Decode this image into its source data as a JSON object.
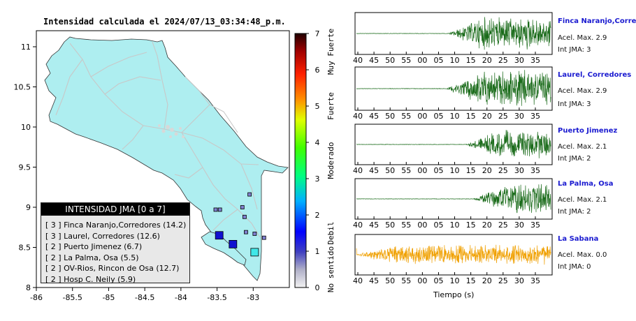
{
  "header": {
    "title": "Intensidad calculada el 2024/07/13_03:34:48_p.m."
  },
  "map": {
    "x_ticks": [
      "-86",
      "-85.5",
      "-85",
      "-84.5",
      "-84",
      "-83.5",
      "-83"
    ],
    "x_values": [
      -86,
      -85.5,
      -85,
      -84.5,
      -84,
      -83.5,
      -83
    ],
    "y_ticks": [
      "11",
      "10.5",
      "10",
      "9.5",
      "9",
      "8.5",
      "8"
    ],
    "y_values": [
      11,
      10.5,
      10,
      9.5,
      9,
      8.5,
      8
    ],
    "xlim": [
      -86,
      -82.5
    ],
    "ylim": [
      8,
      11.2
    ],
    "land_color": "#aeeef0",
    "road_color": "#c8c8c8"
  },
  "colorbar": {
    "ticks": [
      "0",
      "1",
      "2",
      "3",
      "4",
      "5",
      "6",
      "7"
    ],
    "categories": [
      "No sentido",
      "Debil",
      "Moderado",
      "Fuerte",
      "Muy Fuerte"
    ]
  },
  "legend": {
    "title": "INTENSIDAD JMA [0 a 7]",
    "items": [
      "[ 3 ]  Finca Naranjo,Corredores (14.2)",
      "[ 3 ]  Laurel, Corredores (12.6)",
      "[ 2 ]  Puerto Jimenez (6.7)",
      "[ 2 ]  La Palma, Osa (5.5)",
      "[ 2 ]  OV-Rios, Rincon de Osa (12.7)",
      "[ 2 ]  Hosp C. Neily (5.9)"
    ]
  },
  "stations": [
    {
      "name": "Finca Naranjo,Corredor",
      "accel": "Acel. Max. 2.9",
      "jma": "Int JMA: 3",
      "color": "#1a6b1a",
      "onset": 0.47,
      "amp": 0.9
    },
    {
      "name": "Laurel, Corredores",
      "accel": "Acel. Max. 2.9",
      "jma": "Int JMA: 3",
      "color": "#1a6b1a",
      "onset": 0.46,
      "amp": 0.95
    },
    {
      "name": "Puerto Jimenez",
      "accel": "Acel. Max. 2.1",
      "jma": "Int JMA: 2",
      "color": "#1a6b1a",
      "onset": 0.56,
      "amp": 0.8
    },
    {
      "name": "La Palma, Osa",
      "accel": "Acel. Max. 2.1",
      "jma": "Int JMA: 2",
      "color": "#1a6b1a",
      "onset": 0.6,
      "amp": 0.85
    },
    {
      "name": "La Sabana",
      "accel": "Acel. Max. 0.0",
      "jma": "Int JMA: 0",
      "color": "#f0a000",
      "onset": 0.0,
      "amp": 0.55
    }
  ],
  "trace_axis": {
    "ticks": [
      "40",
      "45",
      "50",
      "55",
      "00",
      "05",
      "10",
      "15",
      "20",
      "25",
      "30",
      "35"
    ],
    "xlabel": "Tiempo (s)"
  },
  "markers": [
    {
      "lon": -83.47,
      "lat": 8.65,
      "jma": 3
    },
    {
      "lon": -83.28,
      "lat": 8.54,
      "jma": 3
    },
    {
      "lon": -82.98,
      "lat": 8.44,
      "jma": 1
    },
    {
      "lon": -83.52,
      "lat": 8.97,
      "jma": 2
    },
    {
      "lon": -83.46,
      "lat": 8.97,
      "jma": 2
    },
    {
      "lon": -83.15,
      "lat": 9.0,
      "jma": 2
    },
    {
      "lon": -83.12,
      "lat": 8.88,
      "jma": 2
    },
    {
      "lon": -83.1,
      "lat": 8.69,
      "jma": 2
    },
    {
      "lon": -82.98,
      "lat": 8.67,
      "jma": 2
    },
    {
      "lon": -82.85,
      "lat": 8.62,
      "jma": 2
    },
    {
      "lon": -83.05,
      "lat": 9.16,
      "jma": 2
    }
  ]
}
